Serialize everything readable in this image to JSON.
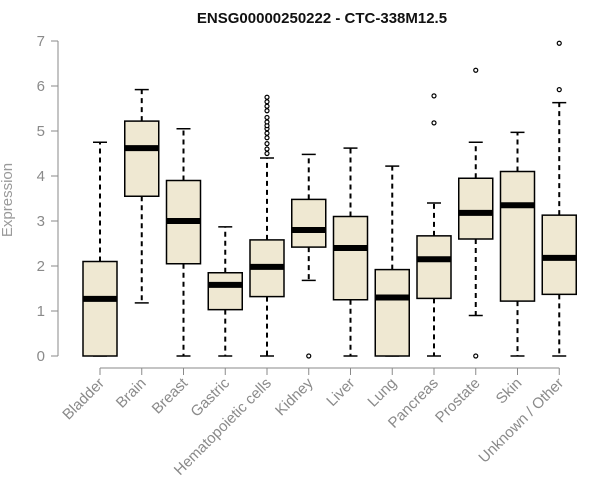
{
  "chart_data": {
    "type": "boxplot",
    "title": "ENSG00000250222 - CTC-338M12.5",
    "xlabel": "",
    "ylabel": "Expression",
    "ylim": [
      0,
      7
    ],
    "yticks": [
      0,
      1,
      2,
      3,
      4,
      5,
      6,
      7
    ],
    "ytick_labels": [
      "0",
      "1",
      "2",
      "3",
      "4",
      "5",
      "6",
      "7"
    ],
    "box_fill": "#efe8d2",
    "categories": [
      "Bladder",
      "Brain",
      "Breast",
      "Gastric",
      "Hematopoietic cells",
      "Kidney",
      "Liver",
      "Lung",
      "Pancreas",
      "Prostate",
      "Skin",
      "Unknown / Other"
    ],
    "boxes": [
      {
        "category": "Bladder",
        "whisker_low": 0,
        "q1": 0,
        "median": 1.27,
        "q3": 2.1,
        "whisker_high": 4.75,
        "outliers": []
      },
      {
        "category": "Brain",
        "whisker_low": 1.18,
        "q1": 3.55,
        "median": 4.62,
        "q3": 5.22,
        "whisker_high": 5.92,
        "outliers": []
      },
      {
        "category": "Breast",
        "whisker_low": 0,
        "q1": 2.05,
        "median": 3.0,
        "q3": 3.9,
        "whisker_high": 5.05,
        "outliers": []
      },
      {
        "category": "Gastric",
        "whisker_low": 0,
        "q1": 1.03,
        "median": 1.58,
        "q3": 1.85,
        "whisker_high": 2.87,
        "outliers": []
      },
      {
        "category": "Hematopoietic cells",
        "whisker_low": 0,
        "q1": 1.32,
        "median": 1.98,
        "q3": 2.58,
        "whisker_high": 4.4,
        "outliers": [
          4.5,
          4.6,
          4.72,
          4.85,
          4.95,
          5.05,
          5.12,
          5.2,
          5.3,
          5.45,
          5.55,
          5.65,
          5.75
        ]
      },
      {
        "category": "Kidney",
        "whisker_low": 1.68,
        "q1": 2.42,
        "median": 2.8,
        "q3": 3.48,
        "whisker_high": 4.48,
        "outliers": [
          0
        ]
      },
      {
        "category": "Liver",
        "whisker_low": 0,
        "q1": 1.25,
        "median": 2.4,
        "q3": 3.1,
        "whisker_high": 4.62,
        "outliers": []
      },
      {
        "category": "Lung",
        "whisker_low": 0,
        "q1": 0,
        "median": 1.3,
        "q3": 1.92,
        "whisker_high": 4.22,
        "outliers": []
      },
      {
        "category": "Pancreas",
        "whisker_low": 0,
        "q1": 1.28,
        "median": 2.15,
        "q3": 2.67,
        "whisker_high": 3.4,
        "outliers": [
          5.18,
          5.78
        ]
      },
      {
        "category": "Prostate",
        "whisker_low": 0.9,
        "q1": 2.6,
        "median": 3.18,
        "q3": 3.95,
        "whisker_high": 4.75,
        "outliers": [
          0,
          6.35
        ]
      },
      {
        "category": "Skin",
        "whisker_low": 0,
        "q1": 1.22,
        "median": 3.35,
        "q3": 4.1,
        "whisker_high": 4.97,
        "outliers": []
      },
      {
        "category": "Unknown / Other",
        "whisker_low": 0,
        "q1": 1.37,
        "median": 2.18,
        "q3": 3.13,
        "whisker_high": 5.63,
        "outliers": [
          5.92,
          6.95
        ]
      }
    ]
  }
}
